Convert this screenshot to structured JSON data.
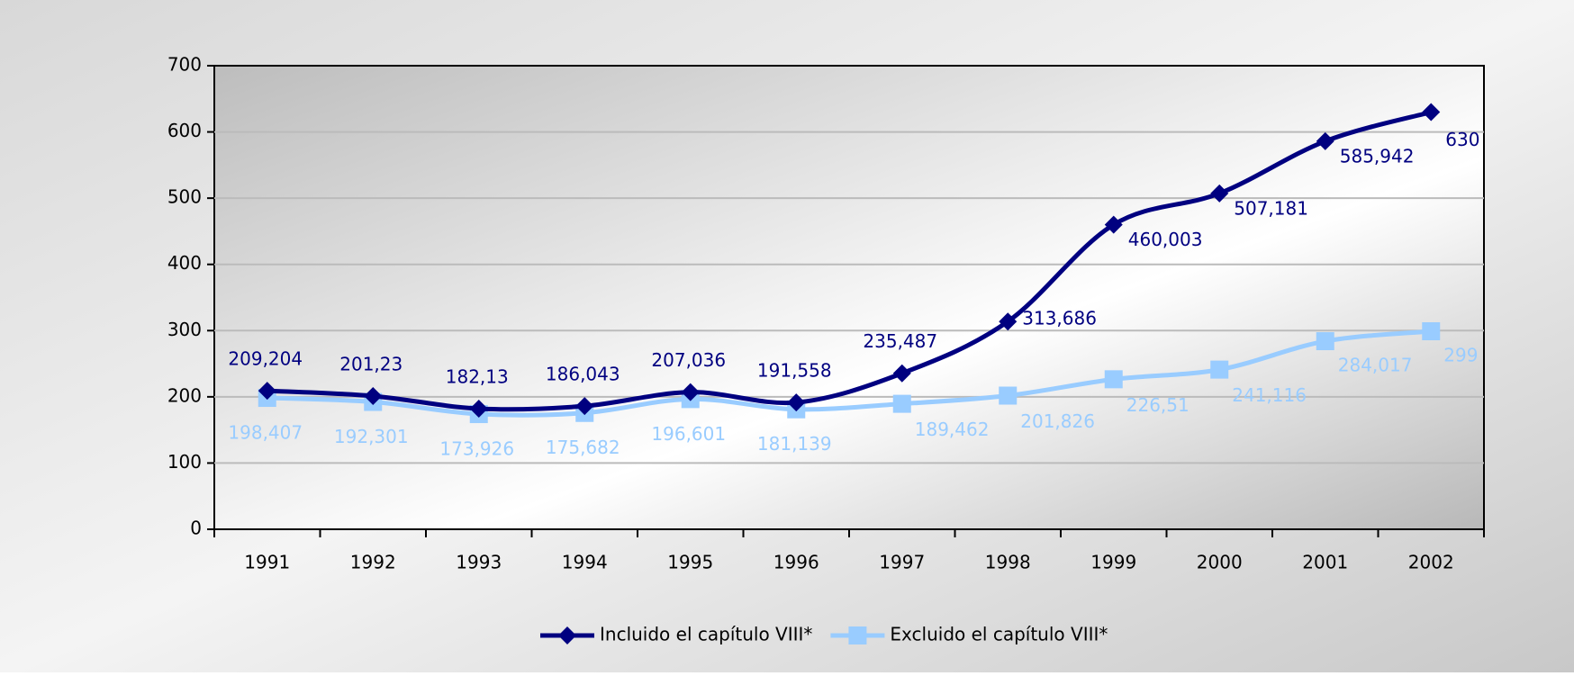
{
  "chart_data": {
    "type": "line",
    "categories": [
      "1991",
      "1992",
      "1993",
      "1994",
      "1995",
      "1996",
      "1997",
      "1998",
      "1999",
      "2000",
      "2001",
      "2002"
    ],
    "series": [
      {
        "name": "Incluido el capítulo VIII*",
        "color": "#000080",
        "marker": "diamond",
        "values": [
          209.204,
          201.23,
          182.13,
          186.043,
          207.036,
          191.558,
          235.487,
          313.686,
          460.003,
          507.181,
          585.942,
          630
        ],
        "value_labels": [
          "209,204",
          "201,23",
          "182,13",
          "186,043",
          "207,036",
          "191,558",
          "235,487",
          "313,686",
          "460,003",
          "507,181",
          "585,942",
          "630"
        ]
      },
      {
        "name": "Excluido el capítulo VIII*",
        "color": "#99ccff",
        "marker": "square",
        "values": [
          198.407,
          192.301,
          173.926,
          175.682,
          196.601,
          181.139,
          189.462,
          201.826,
          226.51,
          241.116,
          284.017,
          299
        ],
        "value_labels": [
          "198,407",
          "192,301",
          "173,926",
          "175,682",
          "196,601",
          "181,139",
          "189,462",
          "201,826",
          "226,51",
          "241,116",
          "284,017",
          "299"
        ]
      }
    ],
    "ylim": [
      0,
      700
    ],
    "yticks": [
      0,
      100,
      200,
      300,
      400,
      500,
      600,
      700
    ],
    "grid": true,
    "legend": "bottom"
  }
}
